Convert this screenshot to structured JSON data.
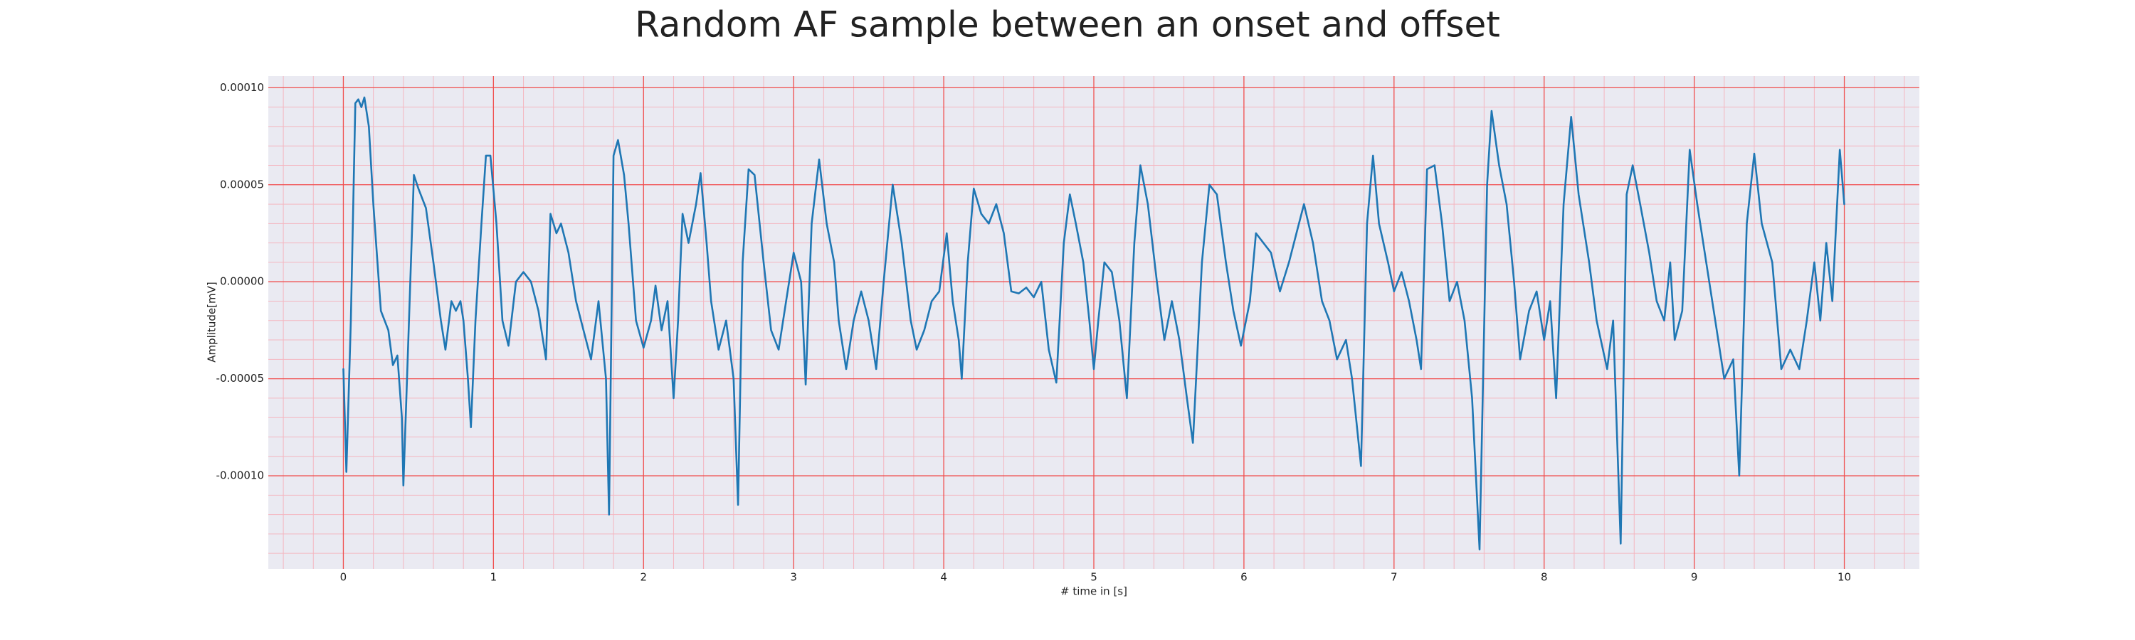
{
  "chart_data": {
    "type": "line",
    "title": "Random AF sample between an onset and offset",
    "xlabel": "# time in [s]",
    "ylabel": "Amplitude[mV]",
    "color": "#1f77b4",
    "grid": true,
    "minor_grid": true,
    "xlim": [
      -0.5,
      10.5
    ],
    "ylim": [
      -0.000148,
      0.000106
    ],
    "xticks": [
      0,
      1,
      2,
      3,
      4,
      5,
      6,
      7,
      8,
      9,
      10
    ],
    "yticks": [
      {
        "value": -0.0001,
        "label": "-0.00010"
      },
      {
        "value": -5e-05,
        "label": "-0.00005"
      },
      {
        "value": 0,
        "label": "0.00000"
      },
      {
        "value": 5e-05,
        "label": "0.00005"
      },
      {
        "value": 0.0001,
        "label": "0.00010"
      }
    ],
    "x": [
      0,
      0.02,
      0.05,
      0.08,
      0.1,
      0.12,
      0.14,
      0.17,
      0.2,
      0.25,
      0.3,
      0.33,
      0.36,
      0.39,
      0.4,
      0.42,
      0.47,
      0.5,
      0.55,
      0.6,
      0.65,
      0.68,
      0.72,
      0.75,
      0.78,
      0.8,
      0.83,
      0.85,
      0.88,
      0.92,
      0.95,
      0.98,
      1.02,
      1.06,
      1.1,
      1.15,
      1.2,
      1.25,
      1.3,
      1.35,
      1.38,
      1.42,
      1.45,
      1.5,
      1.55,
      1.6,
      1.65,
      1.7,
      1.75,
      1.77,
      1.8,
      1.83,
      1.87,
      1.9,
      1.95,
      2.0,
      2.05,
      2.08,
      2.12,
      2.16,
      2.2,
      2.23,
      2.26,
      2.3,
      2.35,
      2.38,
      2.42,
      2.45,
      2.5,
      2.55,
      2.6,
      2.63,
      2.66,
      2.7,
      2.74,
      2.8,
      2.85,
      2.9,
      2.95,
      3.0,
      3.05,
      3.08,
      3.12,
      3.17,
      3.22,
      3.27,
      3.3,
      3.35,
      3.4,
      3.45,
      3.5,
      3.55,
      3.6,
      3.66,
      3.72,
      3.78,
      3.82,
      3.87,
      3.92,
      3.97,
      4.02,
      4.06,
      4.1,
      4.12,
      4.16,
      4.2,
      4.25,
      4.3,
      4.35,
      4.4,
      4.45,
      4.5,
      4.55,
      4.6,
      4.65,
      4.7,
      4.75,
      4.8,
      4.84,
      4.88,
      4.93,
      4.97,
      5.0,
      5.03,
      5.07,
      5.12,
      5.17,
      5.22,
      5.27,
      5.31,
      5.36,
      5.42,
      5.47,
      5.52,
      5.57,
      5.62,
      5.66,
      5.72,
      5.77,
      5.82,
      5.88,
      5.93,
      5.98,
      6.04,
      6.08,
      6.13,
      6.18,
      6.24,
      6.3,
      6.35,
      6.4,
      6.46,
      6.52,
      6.57,
      6.62,
      6.68,
      6.72,
      6.78,
      6.82,
      6.86,
      6.9,
      6.96,
      7.0,
      7.05,
      7.1,
      7.15,
      7.18,
      7.22,
      7.27,
      7.32,
      7.37,
      7.42,
      7.47,
      7.52,
      7.57,
      7.62,
      7.65,
      7.7,
      7.75,
      7.8,
      7.84,
      7.9,
      7.95,
      8.0,
      8.04,
      8.08,
      8.13,
      8.18,
      8.23,
      8.3,
      8.35,
      8.42,
      8.46,
      8.51,
      8.55,
      8.59,
      8.64,
      8.7,
      8.75,
      8.8,
      8.84,
      8.87,
      8.92,
      8.97,
      9.02,
      9.08,
      9.14,
      9.2,
      9.26,
      9.3,
      9.35,
      9.4,
      9.45,
      9.52,
      9.58,
      9.64,
      9.7,
      9.75,
      9.8,
      9.84,
      9.88,
      9.92,
      9.97,
      10.0
    ],
    "values": [
      -4.5e-05,
      -9.8e-05,
      -2e-05,
      9.2e-05,
      9.4e-05,
      9e-05,
      9.5e-05,
      8e-05,
      4e-05,
      -1.5e-05,
      -2.5e-05,
      -4.3e-05,
      -3.8e-05,
      -7e-05,
      -0.000105,
      -6e-05,
      5.5e-05,
      4.8e-05,
      3.8e-05,
      1e-05,
      -2e-05,
      -3.5e-05,
      -1e-05,
      -1.5e-05,
      -1e-05,
      -2e-05,
      -5e-05,
      -7.5e-05,
      -2e-05,
      3e-05,
      6.5e-05,
      6.5e-05,
      3e-05,
      -2e-05,
      -3.3e-05,
      0,
      5e-06,
      0,
      -1.5e-05,
      -4e-05,
      3.5e-05,
      2.5e-05,
      3e-05,
      1.5e-05,
      -1e-05,
      -2.5e-05,
      -4e-05,
      -1e-05,
      -5e-05,
      -0.00012,
      6.5e-05,
      7.3e-05,
      5.5e-05,
      3e-05,
      -2e-05,
      -3.4e-05,
      -2e-05,
      -2e-06,
      -2.5e-05,
      -1e-05,
      -6e-05,
      -2e-05,
      3.5e-05,
      2e-05,
      4e-05,
      5.6e-05,
      2e-05,
      -1e-05,
      -3.5e-05,
      -2e-05,
      -5e-05,
      -0.000115,
      1e-05,
      5.8e-05,
      5.5e-05,
      1e-05,
      -2.5e-05,
      -3.5e-05,
      -1e-05,
      1.5e-05,
      0,
      -5.3e-05,
      3e-05,
      6.3e-05,
      3e-05,
      1e-05,
      -2e-05,
      -4.5e-05,
      -2e-05,
      -5e-06,
      -2e-05,
      -4.5e-05,
      0,
      5e-05,
      2e-05,
      -2e-05,
      -3.5e-05,
      -2.5e-05,
      -1e-05,
      -5e-06,
      2.5e-05,
      -1e-05,
      -3e-05,
      -5e-05,
      1e-05,
      4.8e-05,
      3.5e-05,
      3e-05,
      4e-05,
      2.5e-05,
      -5e-06,
      -6e-06,
      -3e-06,
      -8e-06,
      0,
      -3.5e-05,
      -5.2e-05,
      2e-05,
      4.5e-05,
      3e-05,
      1e-05,
      -2e-05,
      -4.5e-05,
      -2e-05,
      1e-05,
      5e-06,
      -2e-05,
      -6e-05,
      2e-05,
      6e-05,
      4e-05,
      0,
      -3e-05,
      -1e-05,
      -3e-05,
      -6e-05,
      -8.3e-05,
      1e-05,
      5e-05,
      4.5e-05,
      1e-05,
      -1.5e-05,
      -3.3e-05,
      -1e-05,
      2.5e-05,
      2e-05,
      1.5e-05,
      -5e-06,
      1e-05,
      2.5e-05,
      4e-05,
      2e-05,
      -1e-05,
      -2e-05,
      -4e-05,
      -3e-05,
      -5e-05,
      -9.5e-05,
      3e-05,
      6.5e-05,
      3e-05,
      1e-05,
      -5e-06,
      5e-06,
      -1e-05,
      -3e-05,
      -4.5e-05,
      5.8e-05,
      6e-05,
      3e-05,
      -1e-05,
      0,
      -2e-05,
      -6e-05,
      -0.000138,
      5e-05,
      8.8e-05,
      6e-05,
      4e-05,
      0,
      -4e-05,
      -1.5e-05,
      -5e-06,
      -3e-05,
      -1e-05,
      -6e-05,
      4e-05,
      8.5e-05,
      4.5e-05,
      1e-05,
      -2e-05,
      -4.5e-05,
      -2e-05,
      -0.000135,
      4.5e-05,
      6e-05,
      4e-05,
      1.5e-05,
      -1e-05,
      -2e-05,
      1e-05,
      -3e-05,
      -1.5e-05,
      6.8e-05,
      4e-05,
      1e-05,
      -2e-05,
      -5e-05,
      -4e-05,
      -0.0001,
      3e-05,
      6.6e-05,
      3e-05,
      1e-05,
      -4.5e-05,
      -3.5e-05,
      -4.5e-05,
      -2e-05,
      1e-05,
      -2e-05,
      2e-05,
      -1e-05,
      6.8e-05,
      4e-05
    ]
  }
}
